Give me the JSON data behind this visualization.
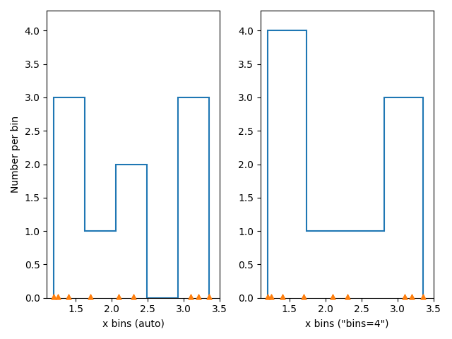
{
  "data": [
    1.2,
    1.25,
    1.4,
    1.7,
    2.1,
    2.3,
    3.1,
    3.2,
    3.35
  ],
  "bins_fixed": 4,
  "xlim_left": [
    1.1,
    3.5
  ],
  "xlim_right": [
    1.1,
    3.5
  ],
  "ylim": [
    0,
    4.3
  ],
  "ylabel": "Number per bin",
  "xlabel_left": "x bins (auto)",
  "xlabel_right": "x bins (\"bins=4\")",
  "hist_color": "#1f77b4",
  "scatter_color": "#ff7f0e",
  "scatter_marker": "^",
  "scatter_size": 25,
  "scatter_y": 0.02,
  "linewidth": 1.5
}
